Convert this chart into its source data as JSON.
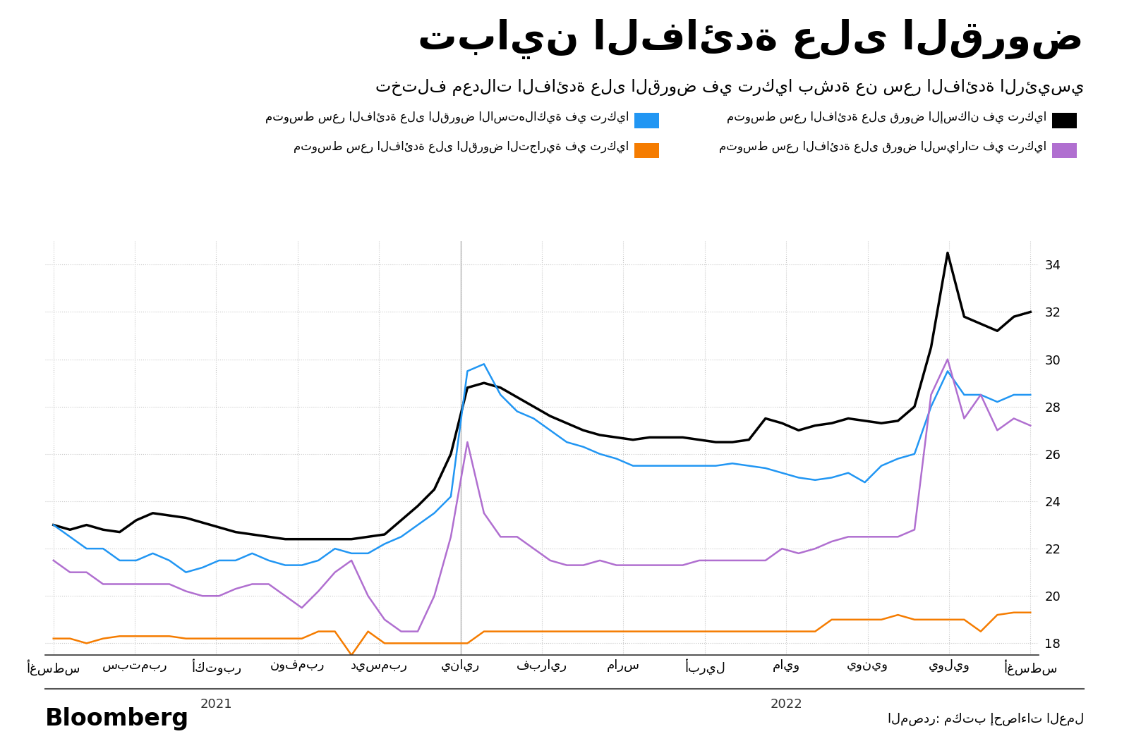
{
  "title": "تباين الفائدة على القروض",
  "subtitle": "تختلف معدلات الفائدة على القروض في تركيا بشدة عن سعر الفائدة الرئيسي",
  "source_label": "المصدر: مكتب إحصاءات العمل",
  "bloomberg_label": "Bloomberg",
  "legend": [
    {
      "label": "متوسط سعر الفائدة على قروض الإسكان في تركيا",
      "color": "#000000"
    },
    {
      "label": "متوسط سعر الفائدة على القروض الاستهلاكية في تركيا",
      "color": "#2196f3"
    },
    {
      "label": "متوسط سعر الفائدة على قروض السيارات في تركيا",
      "color": "#b06fd0"
    },
    {
      "label": "متوسط سعر الفائدة على القروض التجارية في تركيا",
      "color": "#f57c00"
    }
  ],
  "x_labels": [
    "أغسطس",
    "سبتمبر",
    "أكتوبر",
    "نوفمبر",
    "ديسمبر",
    "يناير",
    "فبراير",
    "مارس",
    "أبريل",
    "مايو",
    "يونيو",
    "يوليو",
    "أغسطس"
  ],
  "x_year_labels": [
    {
      "label": "2021",
      "tick_idx": 2
    },
    {
      "label": "2022",
      "tick_idx": 9
    }
  ],
  "ylim": [
    17.5,
    35.0
  ],
  "yticks": [
    18,
    20,
    22,
    24,
    26,
    28,
    30,
    32,
    34
  ],
  "background_color": "#ffffff",
  "grid_color": "#c8c8c8",
  "housing": {
    "color": "#000000",
    "linewidth": 2.5,
    "values": [
      23.0,
      22.8,
      23.0,
      22.8,
      22.7,
      23.2,
      23.5,
      23.4,
      23.3,
      23.1,
      22.9,
      22.7,
      22.6,
      22.5,
      22.4,
      22.4,
      22.4,
      22.4,
      22.4,
      22.5,
      22.6,
      23.2,
      23.8,
      24.5,
      26.0,
      28.8,
      29.0,
      28.8,
      28.4,
      28.0,
      27.6,
      27.3,
      27.0,
      26.8,
      26.7,
      26.6,
      26.7,
      26.7,
      26.7,
      26.6,
      26.5,
      26.5,
      26.6,
      27.5,
      27.3,
      27.0,
      27.2,
      27.3,
      27.5,
      27.4,
      27.3,
      27.4,
      28.0,
      30.5,
      34.5,
      31.8,
      31.5,
      31.2,
      31.8,
      32.0
    ]
  },
  "consumer": {
    "color": "#2196f3",
    "linewidth": 1.8,
    "values": [
      23.0,
      22.5,
      22.0,
      22.0,
      21.5,
      21.5,
      21.8,
      21.5,
      21.0,
      21.2,
      21.5,
      21.5,
      21.8,
      21.5,
      21.3,
      21.3,
      21.5,
      22.0,
      21.8,
      21.8,
      22.2,
      22.5,
      23.0,
      23.5,
      24.2,
      29.5,
      29.8,
      28.5,
      27.8,
      27.5,
      27.0,
      26.5,
      26.3,
      26.0,
      25.8,
      25.5,
      25.5,
      25.5,
      25.5,
      25.5,
      25.5,
      25.6,
      25.5,
      25.4,
      25.2,
      25.0,
      24.9,
      25.0,
      25.2,
      24.8,
      25.5,
      25.8,
      26.0,
      28.0,
      29.5,
      28.5,
      28.5,
      28.2,
      28.5,
      28.5
    ]
  },
  "auto": {
    "color": "#b06fd0",
    "linewidth": 1.8,
    "values": [
      21.5,
      21.0,
      21.0,
      20.5,
      20.5,
      20.5,
      20.5,
      20.5,
      20.2,
      20.0,
      20.0,
      20.3,
      20.5,
      20.5,
      20.0,
      19.5,
      20.2,
      21.0,
      21.5,
      20.0,
      19.0,
      18.5,
      18.5,
      20.0,
      22.5,
      26.5,
      23.5,
      22.5,
      22.5,
      22.0,
      21.5,
      21.3,
      21.3,
      21.5,
      21.3,
      21.3,
      21.3,
      21.3,
      21.3,
      21.5,
      21.5,
      21.5,
      21.5,
      21.5,
      22.0,
      21.8,
      22.0,
      22.3,
      22.5,
      22.5,
      22.5,
      22.5,
      22.8,
      28.5,
      30.0,
      27.5,
      28.5,
      27.0,
      27.5,
      27.2
    ]
  },
  "commercial": {
    "color": "#f57c00",
    "linewidth": 1.8,
    "values": [
      18.2,
      18.2,
      18.0,
      18.2,
      18.3,
      18.3,
      18.3,
      18.3,
      18.2,
      18.2,
      18.2,
      18.2,
      18.2,
      18.2,
      18.2,
      18.2,
      18.5,
      18.5,
      17.5,
      18.5,
      18.0,
      18.0,
      18.0,
      18.0,
      18.0,
      18.0,
      18.5,
      18.5,
      18.5,
      18.5,
      18.5,
      18.5,
      18.5,
      18.5,
      18.5,
      18.5,
      18.5,
      18.5,
      18.5,
      18.5,
      18.5,
      18.5,
      18.5,
      18.5,
      18.5,
      18.5,
      18.5,
      19.0,
      19.0,
      19.0,
      19.0,
      19.2,
      19.0,
      19.0,
      19.0,
      19.0,
      18.5,
      19.2,
      19.3,
      19.3
    ]
  }
}
